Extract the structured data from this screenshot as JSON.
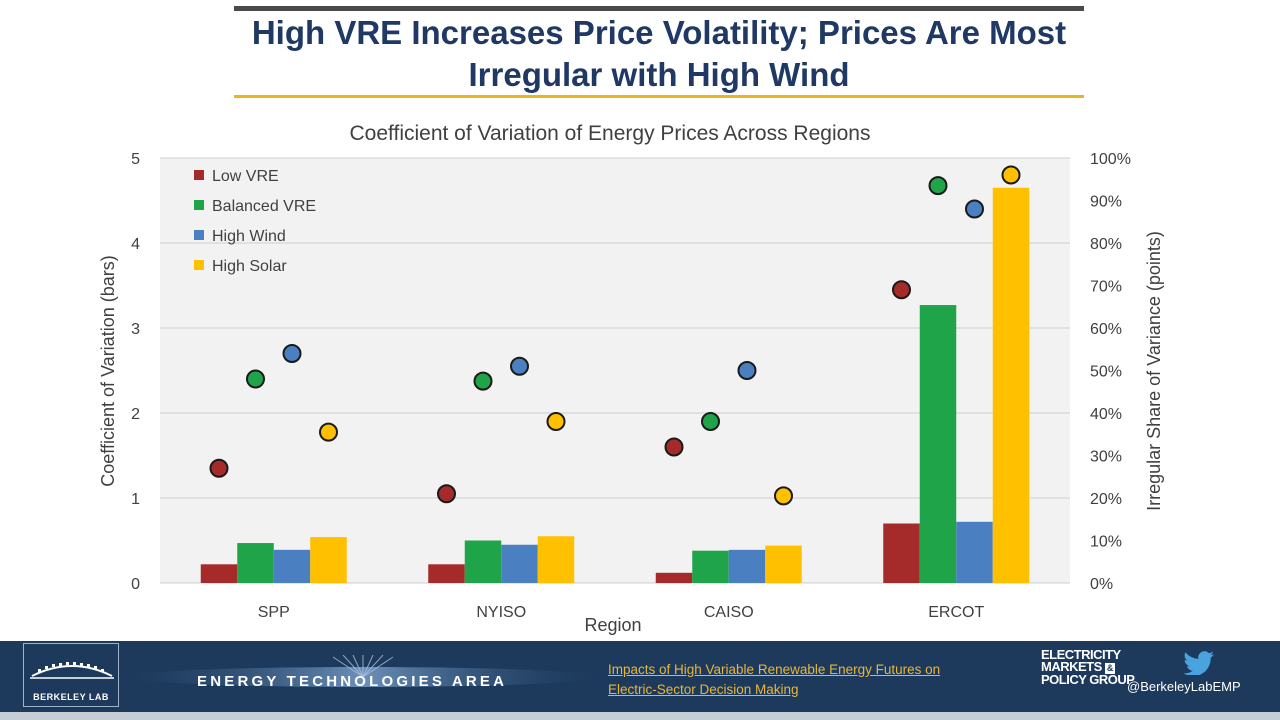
{
  "slide": {
    "title_line1": "High VRE Increases Price Volatility; Prices Are Most",
    "title_line2": "Irregular with High Wind"
  },
  "chart_data": {
    "type": "bar",
    "title": "Coefficient of Variation of Energy Prices Across Regions",
    "xlabel": "Region",
    "ylabel": "Coefficient of Variation (bars)",
    "y2label": "Irregular Share of Variance (points)",
    "categories": [
      "SPP",
      "NYISO",
      "CAISO",
      "ERCOT"
    ],
    "ylim": [
      0,
      5
    ],
    "y2lim": [
      0,
      100
    ],
    "yticks": [
      "0",
      "1",
      "2",
      "3",
      "4",
      "5"
    ],
    "y2ticks": [
      "0%",
      "10%",
      "20%",
      "30%",
      "40%",
      "50%",
      "60%",
      "70%",
      "80%",
      "90%",
      "100%"
    ],
    "legend_position": "top-left",
    "grid": true,
    "series": [
      {
        "name": "Low VRE",
        "color": "#a52a2a",
        "values": [
          0.22,
          0.22,
          0.12,
          0.7
        ],
        "points": [
          27,
          21,
          32,
          69
        ]
      },
      {
        "name": "Balanced VRE",
        "color": "#1fa44a",
        "values": [
          0.47,
          0.5,
          0.38,
          3.27
        ],
        "points": [
          48,
          47.5,
          38,
          93.5
        ]
      },
      {
        "name": "High Wind",
        "color": "#4a7fc1",
        "values": [
          0.39,
          0.45,
          0.39,
          0.72
        ],
        "points": [
          54,
          51,
          50,
          88
        ]
      },
      {
        "name": "High Solar",
        "color": "#ffc000",
        "values": [
          0.54,
          0.55,
          0.44,
          4.65
        ],
        "points": [
          35.5,
          38,
          20.5,
          96
        ]
      }
    ]
  },
  "footer": {
    "logo_text": "BERKELEY LAB",
    "area_label": "Energy Technologies Area",
    "link_line1": "Impacts of High Variable Renewable Energy Futures on",
    "link_line2": "Electric-Sector Decision Making",
    "emp_line1": "ELECTRICITY",
    "emp_line2": "MARKETS",
    "emp_amp": "&",
    "emp_line3": "POLICY GROUP",
    "twitter_handle": "@BerkeleyLabEMP"
  }
}
